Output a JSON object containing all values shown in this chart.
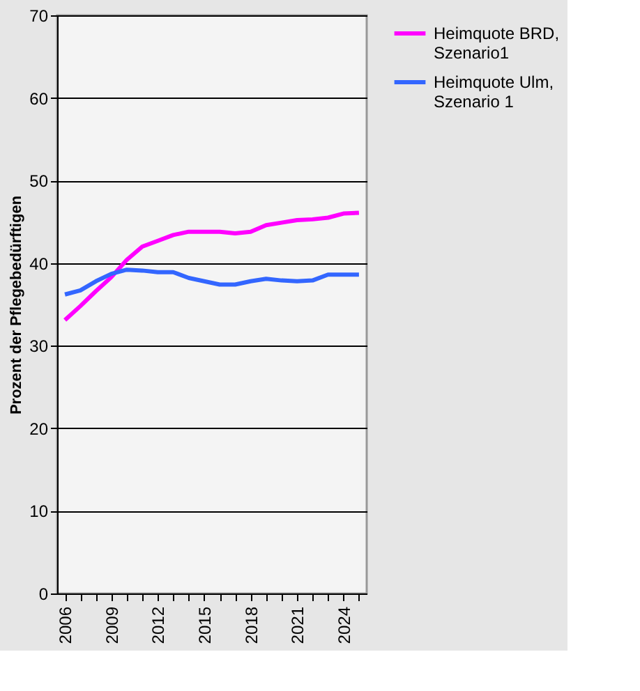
{
  "chart_data": {
    "type": "line",
    "ylabel": "Prozent der Pflegebedürftigen",
    "categories": [
      "2006",
      null,
      null,
      "2009",
      null,
      null,
      "2012",
      null,
      null,
      "2015",
      null,
      null,
      "2018",
      null,
      null,
      "2021",
      null,
      null,
      "2024",
      null
    ],
    "series": [
      {
        "name": "Heimquote BRD, Szenario1",
        "color": "#ff00ff",
        "values": [
          33.1,
          34.8,
          36.6,
          38.3,
          40.4,
          42.0,
          42.7,
          43.4,
          43.8,
          43.8,
          43.8,
          43.6,
          43.8,
          44.6,
          44.9,
          45.2,
          45.3,
          45.5,
          46.0,
          46.1
        ]
      },
      {
        "name": "Heimquote Ulm, Szenario 1",
        "color": "#3366ff",
        "values": [
          36.2,
          36.7,
          37.8,
          38.7,
          39.2,
          39.1,
          38.9,
          38.9,
          38.2,
          37.8,
          37.4,
          37.4,
          37.8,
          38.1,
          37.9,
          37.8,
          37.9,
          38.6,
          38.6,
          38.6
        ]
      }
    ],
    "ylim": [
      0,
      70
    ],
    "yticks": [
      0,
      10,
      20,
      30,
      40,
      50,
      60,
      70
    ],
    "grid": "y",
    "legend": "right",
    "marker": "none",
    "line_style": "solid"
  }
}
